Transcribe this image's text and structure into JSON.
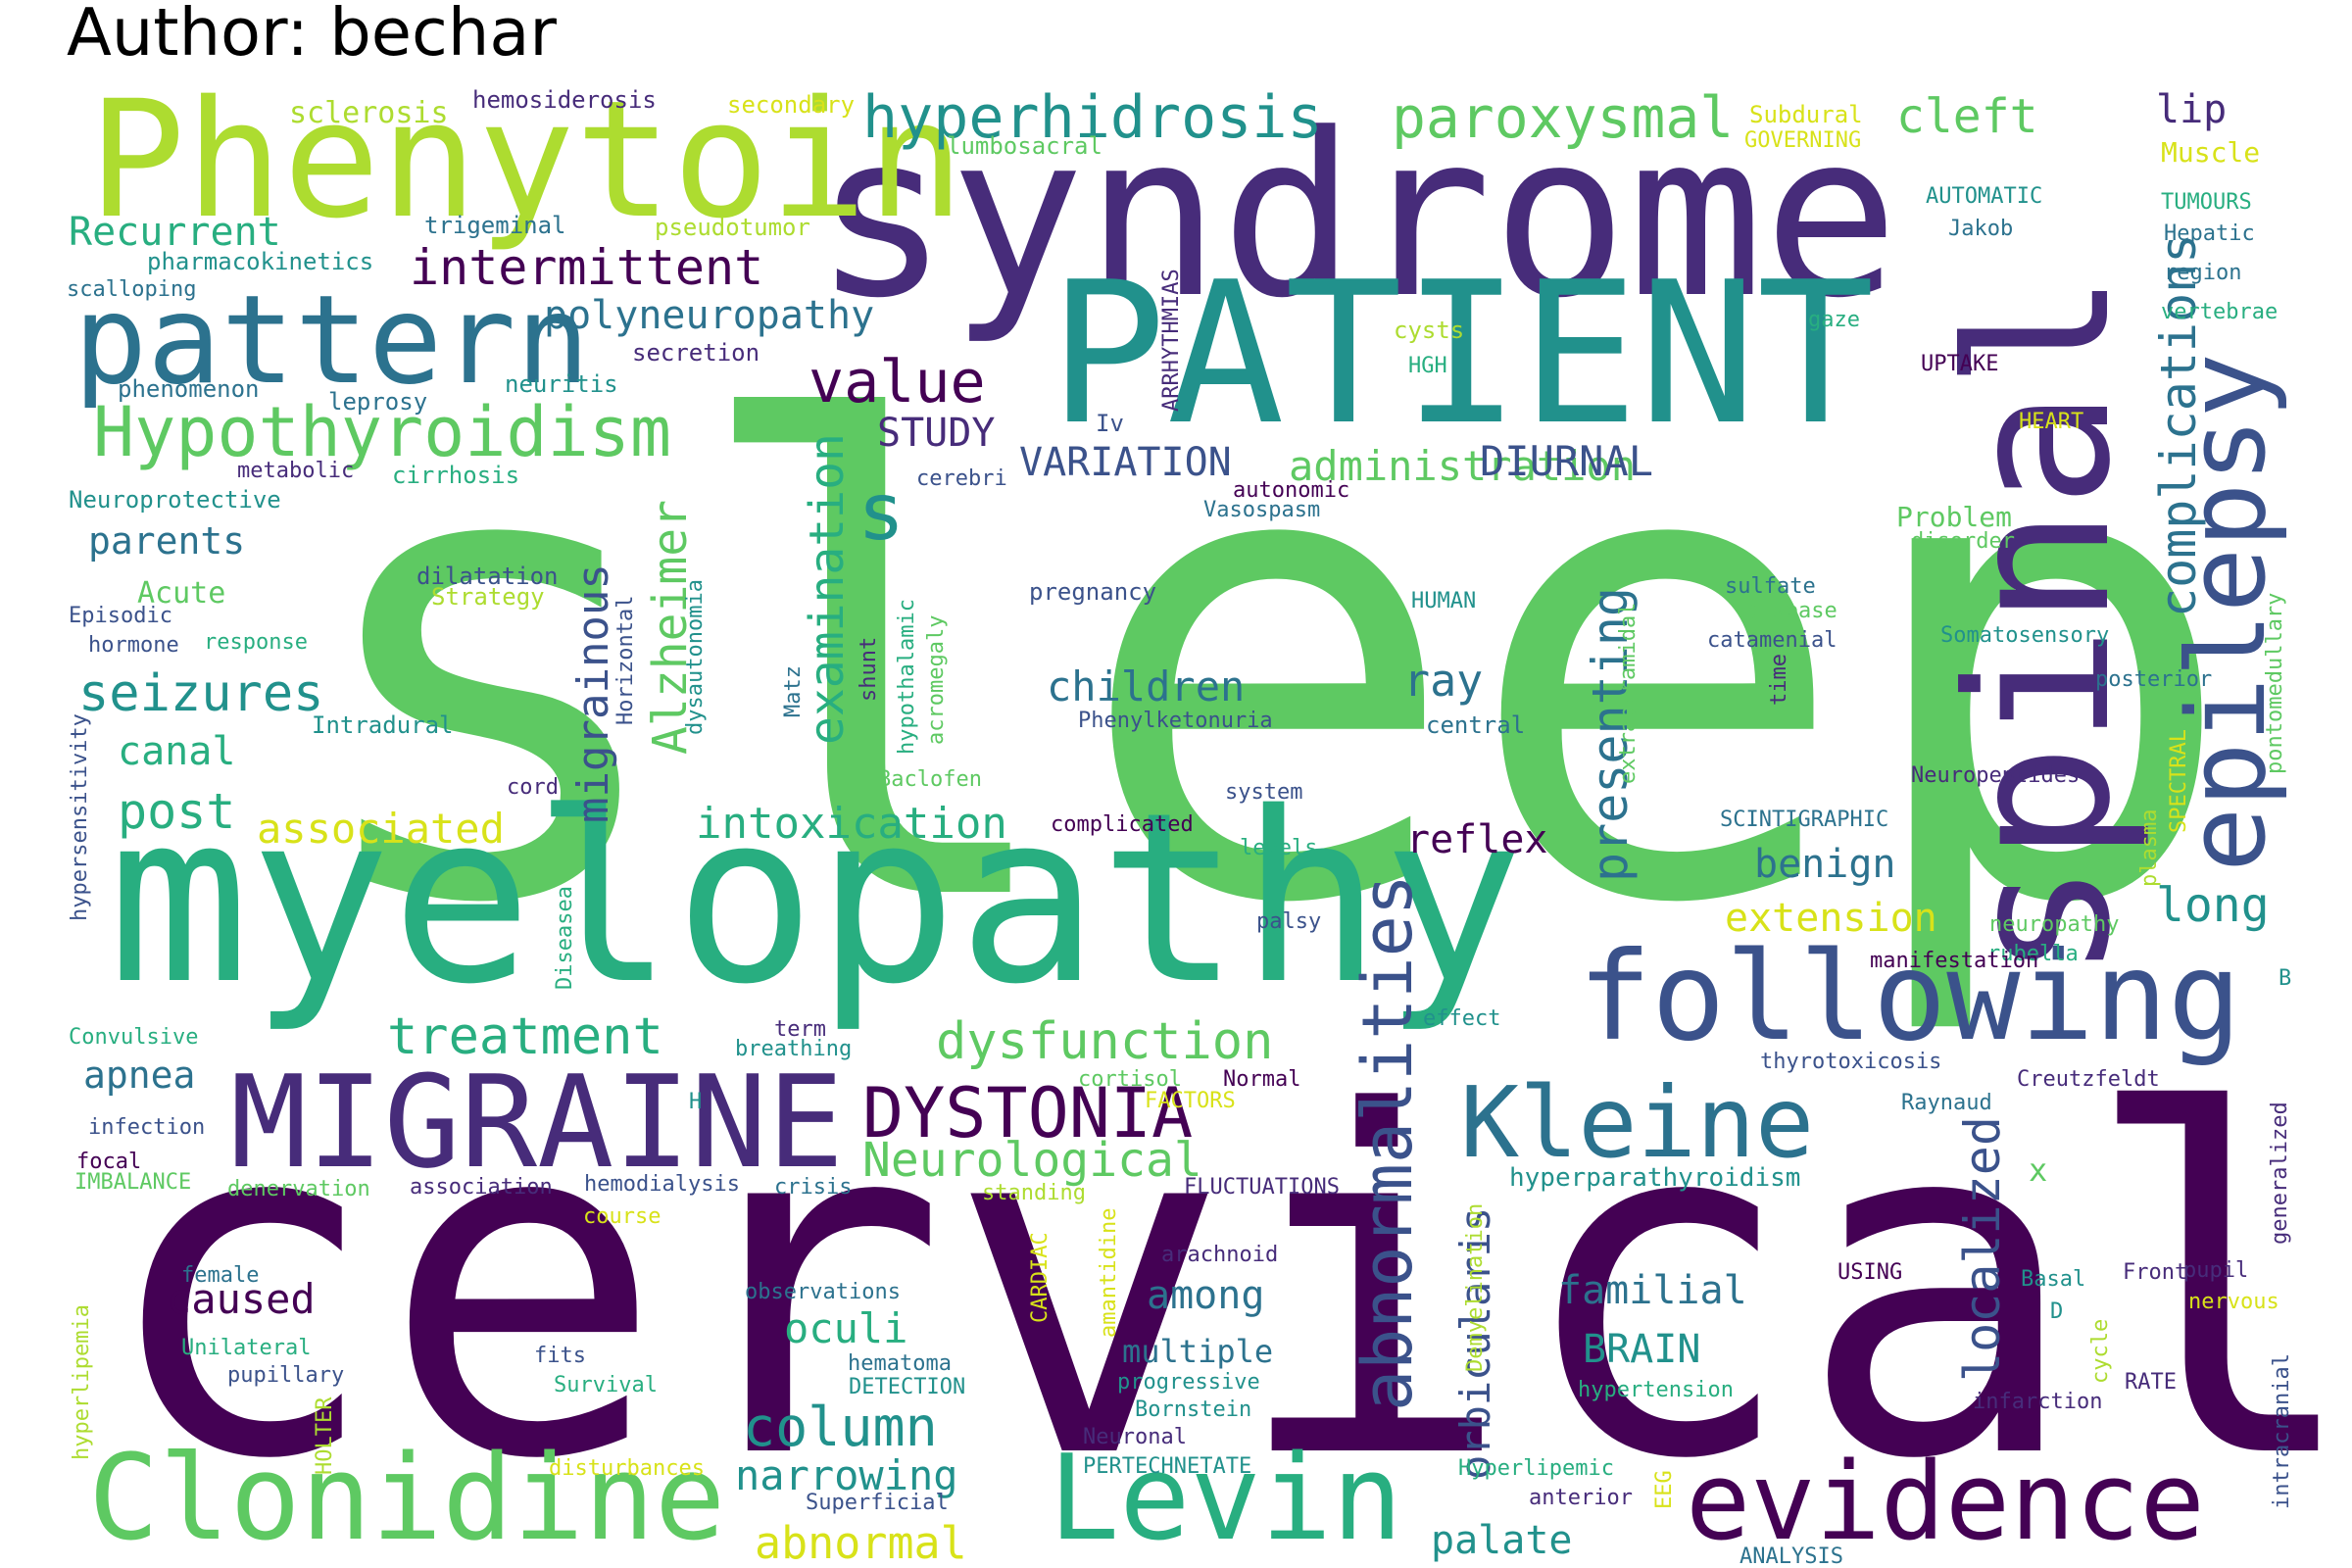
{
  "author": "Author: bechar",
  "palette": {
    "p1": "#440154",
    "p2": "#472c7a",
    "p3": "#3b528b",
    "p4": "#2c728e",
    "p5": "#21918c",
    "p6": "#28ae80",
    "p7": "#5ec962",
    "p8": "#addc30",
    "p9": "#d8e219"
  },
  "words": [
    {
      "text": "sleep",
      "color": "p7"
    },
    {
      "text": "cervical",
      "color": "p1"
    },
    {
      "text": "myelopathy",
      "color": "p6"
    },
    {
      "text": "syndrome",
      "color": "p2"
    },
    {
      "text": "PATIENT",
      "color": "p5"
    },
    {
      "text": "spinal",
      "color": "p2"
    },
    {
      "text": "Phenytoin",
      "color": "p8"
    },
    {
      "text": "pattern",
      "color": "p4"
    },
    {
      "text": "following",
      "color": "p3"
    },
    {
      "text": "MIGRAINE",
      "color": "p2"
    },
    {
      "text": "Clonidine",
      "color": "p7"
    },
    {
      "text": "Levin",
      "color": "p6"
    },
    {
      "text": "evidence",
      "color": "p1"
    },
    {
      "text": "epilepsy",
      "color": "p3"
    },
    {
      "text": "Kleine",
      "color": "p4"
    },
    {
      "text": "abnormalities",
      "color": "p3"
    },
    {
      "text": "DYSTONIA",
      "color": "p1"
    },
    {
      "text": "Hypothyroidism",
      "color": "p7"
    },
    {
      "text": "hyperhidrosis",
      "color": "p5"
    },
    {
      "text": "paroxysmal",
      "color": "p7"
    },
    {
      "text": "complications",
      "color": "p4"
    },
    {
      "text": "s",
      "color": "p5"
    },
    {
      "text": "value",
      "color": "p1"
    },
    {
      "text": "examination",
      "color": "p6"
    },
    {
      "text": "Alzheimer",
      "color": "p7"
    },
    {
      "text": "migrainous",
      "color": "p3"
    },
    {
      "text": "presenting",
      "color": "p4"
    },
    {
      "text": "intermittent",
      "color": "p1"
    },
    {
      "text": "polyneuropathy",
      "color": "p4"
    },
    {
      "text": "administration",
      "color": "p7"
    },
    {
      "text": "cleft",
      "color": "p7"
    },
    {
      "text": "Recurrent",
      "color": "p6"
    },
    {
      "text": "seizures",
      "color": "p5"
    },
    {
      "text": "dysfunction",
      "color": "p7"
    },
    {
      "text": "treatment",
      "color": "p6"
    },
    {
      "text": "Neurological",
      "color": "p7"
    },
    {
      "text": "intoxication",
      "color": "p6"
    },
    {
      "text": "column",
      "color": "p5"
    },
    {
      "text": "localized",
      "color": "p3"
    },
    {
      "text": "orbicularis",
      "color": "p3"
    },
    {
      "text": "narrowing",
      "color": "p5"
    },
    {
      "text": "abnormal",
      "color": "p9"
    },
    {
      "text": "DIURNAL",
      "color": "p3"
    },
    {
      "text": "VARIATION",
      "color": "p3"
    },
    {
      "text": "STUDY",
      "color": "p2"
    },
    {
      "text": "children",
      "color": "p4"
    },
    {
      "text": "associated",
      "color": "p9"
    },
    {
      "text": "post",
      "color": "p6"
    },
    {
      "text": "canal",
      "color": "p6"
    },
    {
      "text": "parents",
      "color": "p4"
    },
    {
      "text": "apnea",
      "color": "p4"
    },
    {
      "text": "caused",
      "color": "p1"
    },
    {
      "text": "oculi",
      "color": "p6"
    },
    {
      "text": "among",
      "color": "p4"
    },
    {
      "text": "reflex",
      "color": "p1"
    },
    {
      "text": "benign",
      "color": "p4"
    },
    {
      "text": "extension",
      "color": "p9"
    },
    {
      "text": "long",
      "color": "p5"
    },
    {
      "text": "familial",
      "color": "p4"
    },
    {
      "text": "BRAIN",
      "color": "p5"
    },
    {
      "text": "palate",
      "color": "p5"
    },
    {
      "text": "ray",
      "color": "p4"
    },
    {
      "text": "lip",
      "color": "p2"
    },
    {
      "text": "hyperparathyroidism",
      "color": "p5"
    },
    {
      "text": "multiple",
      "color": "p4"
    },
    {
      "text": "Problem",
      "color": "p7"
    },
    {
      "text": "Acute",
      "color": "p7"
    },
    {
      "text": "Muscle",
      "color": "p9"
    },
    {
      "text": "x",
      "color": "p7"
    },
    {
      "text": "sclerosis",
      "color": "p8"
    },
    {
      "text": "hemosiderosis",
      "color": "p2"
    },
    {
      "text": "secondary",
      "color": "p9"
    },
    {
      "text": "Subdural",
      "color": "p9"
    },
    {
      "text": "GOVERNING",
      "color": "p9"
    },
    {
      "text": "lumbosacral",
      "color": "p7"
    },
    {
      "text": "AUTOMATIC",
      "color": "p5"
    },
    {
      "text": "TUMOURS",
      "color": "p6"
    },
    {
      "text": "trigeminal",
      "color": "p4"
    },
    {
      "text": "pseudotumor",
      "color": "p8"
    },
    {
      "text": "Jakob",
      "color": "p4"
    },
    {
      "text": "Hepatic",
      "color": "p4"
    },
    {
      "text": "pharmacokinetics",
      "color": "p5"
    },
    {
      "text": "region",
      "color": "p4"
    },
    {
      "text": "scalloping",
      "color": "p4"
    },
    {
      "text": "vertebrae",
      "color": "p6"
    },
    {
      "text": "cysts",
      "color": "p8"
    },
    {
      "text": "gaze",
      "color": "p6"
    },
    {
      "text": "secretion",
      "color": "p2"
    },
    {
      "text": "HGH",
      "color": "p6"
    },
    {
      "text": "ARRHYTHMIAS",
      "color": "p2"
    },
    {
      "text": "UPTAKE",
      "color": "p1"
    },
    {
      "text": "phenomenon",
      "color": "p4"
    },
    {
      "text": "neuritis",
      "color": "p5"
    },
    {
      "text": "leprosy",
      "color": "p4"
    },
    {
      "text": "Iv",
      "color": "p3"
    },
    {
      "text": "HEART",
      "color": "p9"
    },
    {
      "text": "metabolic",
      "color": "p2"
    },
    {
      "text": "cirrhosis",
      "color": "p6"
    },
    {
      "text": "cerebri",
      "color": "p3"
    },
    {
      "text": "autonomic",
      "color": "p1"
    },
    {
      "text": "Neuroprotective",
      "color": "p5"
    },
    {
      "text": "Vasospasm",
      "color": "p4"
    },
    {
      "text": "disorder",
      "color": "p7"
    },
    {
      "text": "dilatation",
      "color": "p3"
    },
    {
      "text": "Strategy",
      "color": "p8"
    },
    {
      "text": "pregnancy",
      "color": "p3"
    },
    {
      "text": "sulfate",
      "color": "p4"
    },
    {
      "text": "HUMAN",
      "color": "p5"
    },
    {
      "text": "disease",
      "color": "p7"
    },
    {
      "text": "Episodic",
      "color": "p3"
    },
    {
      "text": "hormone",
      "color": "p3"
    },
    {
      "text": "response",
      "color": "p6"
    },
    {
      "text": "Horizontal",
      "color": "p3"
    },
    {
      "text": "dysautonomia",
      "color": "p5"
    },
    {
      "text": "hypothalamic",
      "color": "p6"
    },
    {
      "text": "acromegaly",
      "color": "p7"
    },
    {
      "text": "Somatosensory",
      "color": "p5"
    },
    {
      "text": "catamenial",
      "color": "p3"
    },
    {
      "text": "posterior",
      "color": "p4"
    },
    {
      "text": "time",
      "color": "p2"
    },
    {
      "text": "pontomedullary",
      "color": "p7"
    },
    {
      "text": "Matz",
      "color": "p4"
    },
    {
      "text": "shunt",
      "color": "p2"
    },
    {
      "text": "Intradural",
      "color": "p5"
    },
    {
      "text": "Phenylketonuria",
      "color": "p3"
    },
    {
      "text": "central",
      "color": "p4"
    },
    {
      "text": "extrapyramidal",
      "color": "p7"
    },
    {
      "text": "cord",
      "color": "p2"
    },
    {
      "text": "Baclofen",
      "color": "p7"
    },
    {
      "text": "system",
      "color": "p3"
    },
    {
      "text": "Neuropeptides",
      "color": "p2"
    },
    {
      "text": "hypersensitivity",
      "color": "p3"
    },
    {
      "text": "complicated",
      "color": "p1"
    },
    {
      "text": "SCINTIGRAPHIC",
      "color": "p4"
    },
    {
      "text": "levels",
      "color": "p6"
    },
    {
      "text": "plasma",
      "color": "p8"
    },
    {
      "text": "SPECTRAL",
      "color": "p9"
    },
    {
      "text": "Diseasea",
      "color": "p6"
    },
    {
      "text": "palsy",
      "color": "p3"
    },
    {
      "text": "neuropathy",
      "color": "p7"
    },
    {
      "text": "rubella",
      "color": "p6"
    },
    {
      "text": "manifestation",
      "color": "p1"
    },
    {
      "text": "B",
      "color": "p5"
    },
    {
      "text": "Convulsive",
      "color": "p6"
    },
    {
      "text": "term",
      "color": "p2"
    },
    {
      "text": "effect",
      "color": "p5"
    },
    {
      "text": "breathing",
      "color": "p5"
    },
    {
      "text": "thyrotoxicosis",
      "color": "p3"
    },
    {
      "text": "cortisol",
      "color": "p7"
    },
    {
      "text": "Normal",
      "color": "p1"
    },
    {
      "text": "Raynaud",
      "color": "p4"
    },
    {
      "text": "Creutzfeldt",
      "color": "p2"
    },
    {
      "text": "infection",
      "color": "p3"
    },
    {
      "text": "H",
      "color": "p5"
    },
    {
      "text": "FACTORS",
      "color": "p9"
    },
    {
      "text": "generalized",
      "color": "p2"
    },
    {
      "text": "focal",
      "color": "p1"
    },
    {
      "text": "IMBALANCE",
      "color": "p7"
    },
    {
      "text": "denervation",
      "color": "p7"
    },
    {
      "text": "association",
      "color": "p2"
    },
    {
      "text": "hemodialysis",
      "color": "p3"
    },
    {
      "text": "crisis",
      "color": "p4"
    },
    {
      "text": "standing",
      "color": "p8"
    },
    {
      "text": "FLUCTUATIONS",
      "color": "p2"
    },
    {
      "text": "course",
      "color": "p9"
    },
    {
      "text": "arachnoid",
      "color": "p2"
    },
    {
      "text": "pupil",
      "color": "p2"
    },
    {
      "text": "female",
      "color": "p4"
    },
    {
      "text": "amantidine",
      "color": "p9"
    },
    {
      "text": "CARDIAC",
      "color": "p9"
    },
    {
      "text": "Demyelination",
      "color": "p8"
    },
    {
      "text": "USING",
      "color": "p1"
    },
    {
      "text": "Front",
      "color": "p2"
    },
    {
      "text": "hyperlipemia",
      "color": "p8"
    },
    {
      "text": "Basal",
      "color": "p5"
    },
    {
      "text": "observations",
      "color": "p4"
    },
    {
      "text": "nervous",
      "color": "p9"
    },
    {
      "text": "D",
      "color": "p5"
    },
    {
      "text": "Unilateral",
      "color": "p6"
    },
    {
      "text": "fits",
      "color": "p3"
    },
    {
      "text": "pupillary",
      "color": "p3"
    },
    {
      "text": "hematoma",
      "color": "p4"
    },
    {
      "text": "progressive",
      "color": "p5"
    },
    {
      "text": "Survival",
      "color": "p6"
    },
    {
      "text": "DETECTION",
      "color": "p5"
    },
    {
      "text": "hypertension",
      "color": "p6"
    },
    {
      "text": "RATE",
      "color": "p2"
    },
    {
      "text": "cycle",
      "color": "p8"
    },
    {
      "text": "Bornstein",
      "color": "p5"
    },
    {
      "text": "infarction",
      "color": "p2"
    },
    {
      "text": "HOLTER",
      "color": "p8"
    },
    {
      "text": "Neuronal",
      "color": "p2"
    },
    {
      "text": "intracranial",
      "color": "p3"
    },
    {
      "text": "disturbances",
      "color": "p9"
    },
    {
      "text": "PERTECHNETATE",
      "color": "p5"
    },
    {
      "text": "Hyperlipemic",
      "color": "p6"
    },
    {
      "text": "anterior",
      "color": "p2"
    },
    {
      "text": "EEG",
      "color": "p9"
    },
    {
      "text": "Superficial",
      "color": "p3"
    },
    {
      "text": "ANALYSIS",
      "color": "p4"
    }
  ]
}
